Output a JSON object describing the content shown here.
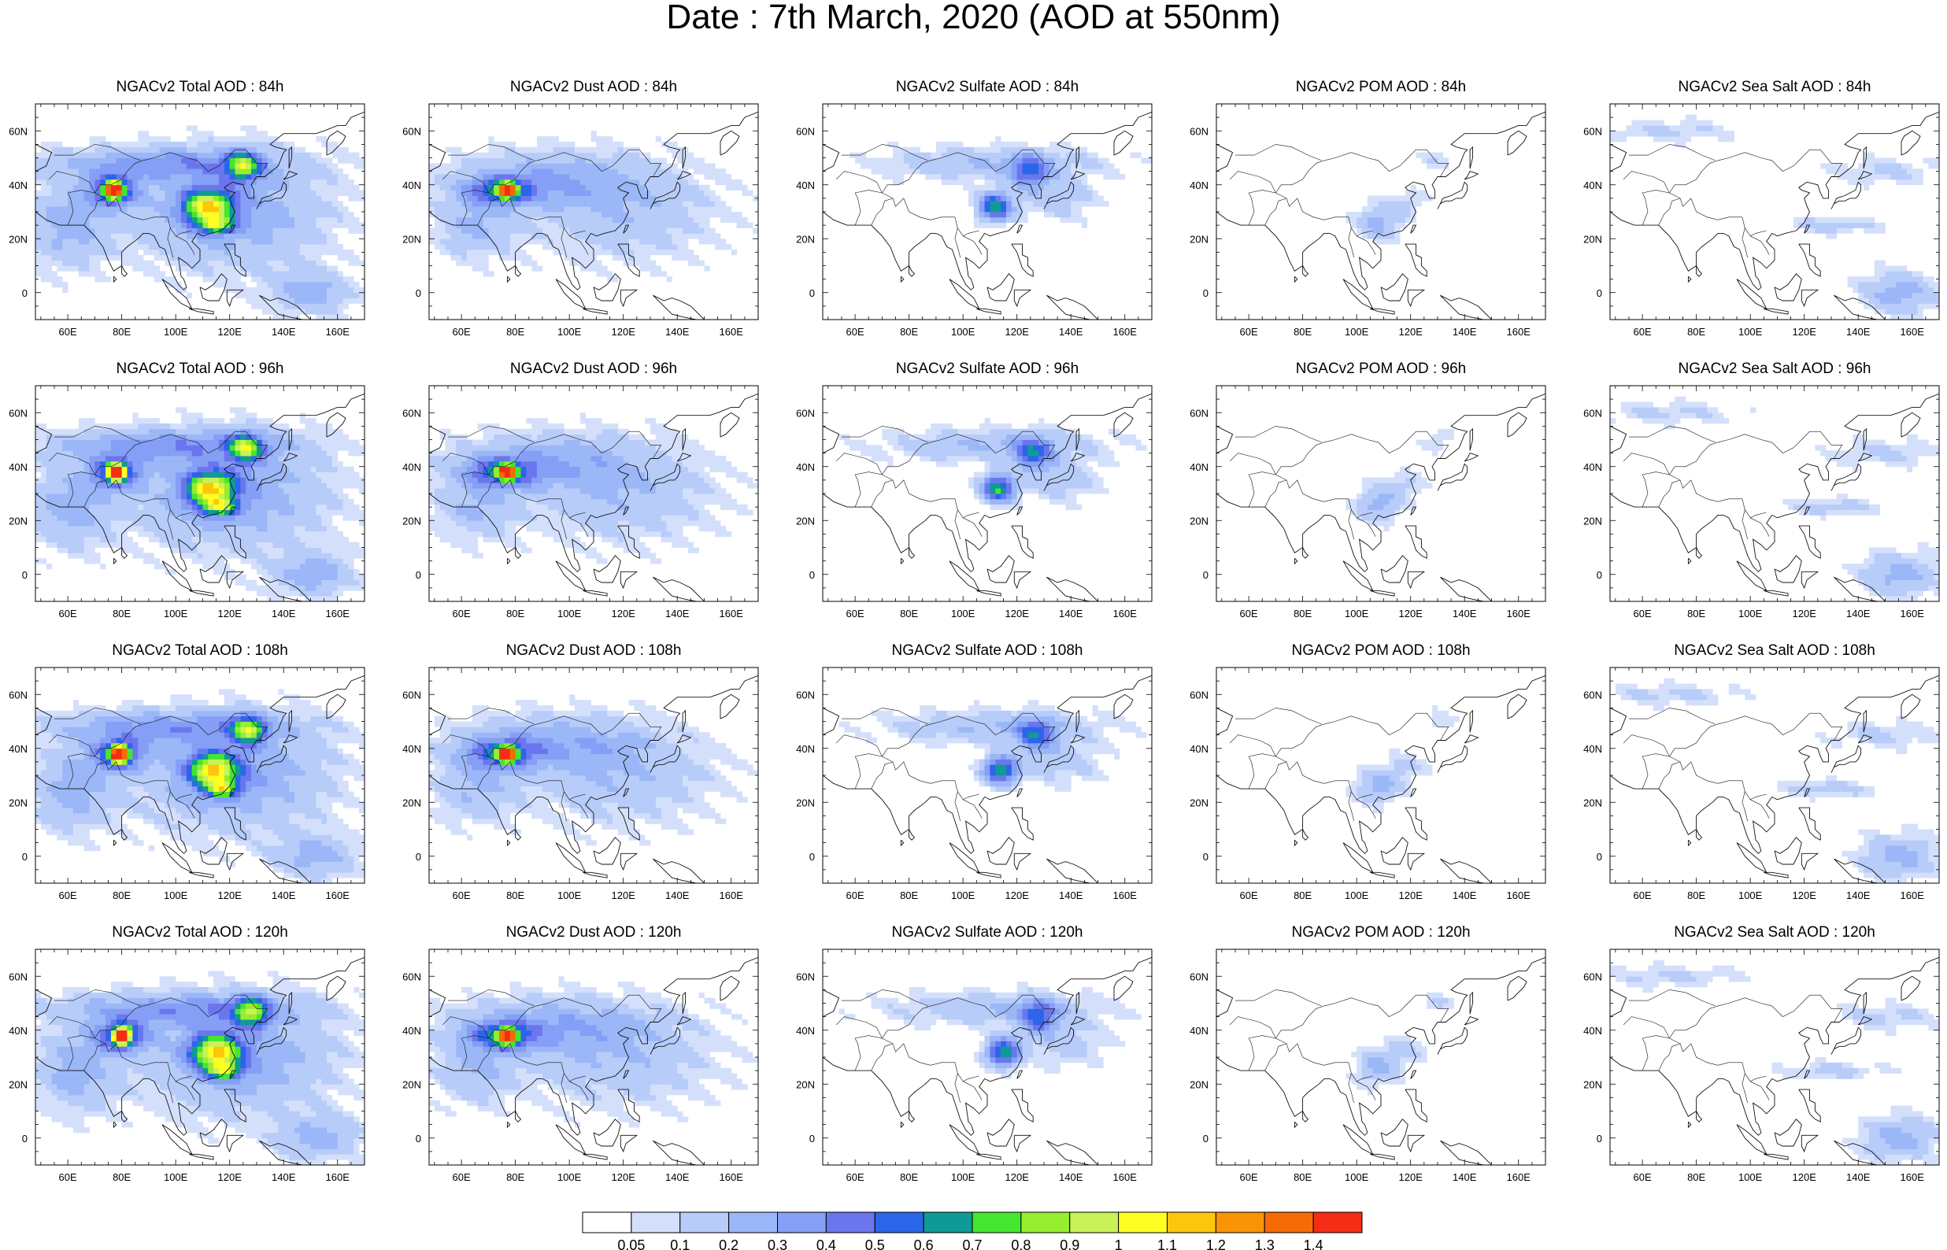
{
  "title": "Date : 7th March, 2020 (AOD at 550nm)",
  "colors": {
    "levels": [
      "#ffffff",
      "#d4e0fb",
      "#b7ccf9",
      "#9bb7f7",
      "#849ff5",
      "#6b76ee",
      "#2b66ea",
      "#109a95",
      "#44e62f",
      "#97ed2f",
      "#c8f257",
      "#fefe22",
      "#fcc60c",
      "#f99407",
      "#f66b06",
      "#f52d14"
    ]
  },
  "chart_data": {
    "type": "heatmap",
    "variable": "AOD at 550nm",
    "date": "7th March, 2020",
    "layout": {
      "rows": [
        "84h",
        "96h",
        "108h",
        "120h"
      ],
      "columns": [
        "Total",
        "Dust",
        "Sulfate",
        "POM",
        "Sea Salt"
      ]
    },
    "axes": {
      "x": {
        "ticks": [
          60,
          80,
          100,
          120,
          140,
          160
        ],
        "tick_labels": [
          "60E",
          "80E",
          "100E",
          "120E",
          "140E",
          "160E"
        ],
        "range": [
          48,
          170
        ]
      },
      "y": {
        "ticks": [
          0,
          20,
          40,
          60
        ],
        "tick_labels": [
          "0",
          "20N",
          "40N",
          "60N"
        ],
        "range": [
          -10,
          70
        ]
      }
    },
    "colorbar": {
      "labels": [
        "0.05",
        "0.1",
        "0.2",
        "0.3",
        "0.4",
        "0.5",
        "0.6",
        "0.7",
        "0.8",
        "0.9",
        "1",
        "1.1",
        "1.2",
        "1.3",
        "1.4"
      ],
      "boundaries": [
        0.05,
        0.1,
        0.2,
        0.3,
        0.4,
        0.5,
        0.6,
        0.7,
        0.8,
        0.9,
        1,
        1.1,
        1.2,
        1.3,
        1.4
      ],
      "placement": "bottom"
    },
    "panels": [
      {
        "title": "NGACv2 Total AOD : 84h",
        "row": 0,
        "col": 0,
        "species": "total",
        "lead": 84
      },
      {
        "title": "NGACv2 Dust AOD : 84h",
        "row": 0,
        "col": 1,
        "species": "dust",
        "lead": 84
      },
      {
        "title": "NGACv2 Sulfate AOD : 84h",
        "row": 0,
        "col": 2,
        "species": "sulfate",
        "lead": 84
      },
      {
        "title": "NGACv2 POM AOD : 84h",
        "row": 0,
        "col": 3,
        "species": "pom",
        "lead": 84
      },
      {
        "title": "NGACv2 Sea Salt AOD : 84h",
        "row": 0,
        "col": 4,
        "species": "seasalt",
        "lead": 84
      },
      {
        "title": "NGACv2 Total AOD : 96h",
        "row": 1,
        "col": 0,
        "species": "total",
        "lead": 96
      },
      {
        "title": "NGACv2 Dust AOD : 96h",
        "row": 1,
        "col": 1,
        "species": "dust",
        "lead": 96
      },
      {
        "title": "NGACv2 Sulfate AOD : 96h",
        "row": 1,
        "col": 2,
        "species": "sulfate",
        "lead": 96
      },
      {
        "title": "NGACv2 POM AOD : 96h",
        "row": 1,
        "col": 3,
        "species": "pom",
        "lead": 96
      },
      {
        "title": "NGACv2 Sea Salt AOD : 96h",
        "row": 1,
        "col": 4,
        "species": "seasalt",
        "lead": 96
      },
      {
        "title": "NGACv2 Total AOD : 108h",
        "row": 2,
        "col": 0,
        "species": "total",
        "lead": 108
      },
      {
        "title": "NGACv2 Dust AOD : 108h",
        "row": 2,
        "col": 1,
        "species": "dust",
        "lead": 108
      },
      {
        "title": "NGACv2 Sulfate AOD : 108h",
        "row": 2,
        "col": 2,
        "species": "sulfate",
        "lead": 108
      },
      {
        "title": "NGACv2 POM AOD : 108h",
        "row": 2,
        "col": 3,
        "species": "pom",
        "lead": 108
      },
      {
        "title": "NGACv2 Sea Salt AOD : 108h",
        "row": 2,
        "col": 4,
        "species": "seasalt",
        "lead": 108
      },
      {
        "title": "NGACv2 Total AOD : 120h",
        "row": 3,
        "col": 0,
        "species": "total",
        "lead": 120
      },
      {
        "title": "NGACv2 Dust AOD : 120h",
        "row": 3,
        "col": 1,
        "species": "dust",
        "lead": 120
      },
      {
        "title": "NGACv2 Sulfate AOD : 120h",
        "row": 3,
        "col": 2,
        "species": "sulfate",
        "lead": 120
      },
      {
        "title": "NGACv2 POM AOD : 120h",
        "row": 3,
        "col": 3,
        "species": "pom",
        "lead": 120
      },
      {
        "title": "NGACv2 Sea Salt  AOD : 120h",
        "row": 3,
        "col": 4,
        "species": "seasalt",
        "lead": 120
      }
    ],
    "features": {
      "total": [
        {
          "lon": 77,
          "lat": 38,
          "amp": 1.4,
          "rlon": 3,
          "rlat": 3
        },
        {
          "lon": 77,
          "lat": 38,
          "amp": 0.5,
          "rlon": 10,
          "rlat": 6
        },
        {
          "lon": 112,
          "lat": 32,
          "amp": 0.9,
          "rlon": 9,
          "rlat": 6
        },
        {
          "lon": 125,
          "lat": 47,
          "amp": 0.7,
          "rlon": 6,
          "rlat": 5
        },
        {
          "lon": 115,
          "lat": 25,
          "amp": 0.6,
          "rlon": 6,
          "rlat": 3
        },
        {
          "lon": 95,
          "lat": 48,
          "amp": 0.3,
          "rlon": 45,
          "rlat": 6
        },
        {
          "lon": 120,
          "lat": 30,
          "amp": 0.3,
          "rlon": 35,
          "rlat": 20
        },
        {
          "lon": 60,
          "lat": 25,
          "amp": 0.25,
          "rlon": 15,
          "rlat": 15
        },
        {
          "lon": 150,
          "lat": 0,
          "amp": 0.25,
          "rlon": 15,
          "rlat": 8
        }
      ],
      "dust": [
        {
          "lon": 77,
          "lat": 38,
          "amp": 1.3,
          "rlon": 3,
          "rlat": 2.5
        },
        {
          "lon": 75,
          "lat": 38,
          "amp": 0.45,
          "rlon": 12,
          "rlat": 5
        },
        {
          "lon": 90,
          "lat": 42,
          "amp": 0.25,
          "rlon": 35,
          "rlat": 10
        },
        {
          "lon": 120,
          "lat": 30,
          "amp": 0.18,
          "rlon": 35,
          "rlat": 18
        },
        {
          "lon": 65,
          "lat": 25,
          "amp": 0.2,
          "rlon": 15,
          "rlat": 12
        }
      ],
      "sulfate": [
        {
          "lon": 112,
          "lat": 32,
          "amp": 0.7,
          "rlon": 6,
          "rlat": 5
        },
        {
          "lon": 125,
          "lat": 45,
          "amp": 0.45,
          "rlon": 7,
          "rlat": 6
        },
        {
          "lon": 110,
          "lat": 48,
          "amp": 0.2,
          "rlon": 40,
          "rlat": 6
        },
        {
          "lon": 135,
          "lat": 35,
          "amp": 0.15,
          "rlon": 15,
          "rlat": 8
        }
      ],
      "pom": [
        {
          "lon": 108,
          "lat": 26,
          "amp": 0.25,
          "rlon": 8,
          "rlat": 6
        },
        {
          "lon": 118,
          "lat": 33,
          "amp": 0.12,
          "rlon": 8,
          "rlat": 5
        },
        {
          "lon": 130,
          "lat": 50,
          "amp": 0.1,
          "rlon": 6,
          "rlat": 4
        }
      ],
      "seasalt": [
        {
          "lon": 155,
          "lat": 0,
          "amp": 0.25,
          "rlon": 14,
          "rlat": 8
        },
        {
          "lon": 130,
          "lat": 25,
          "amp": 0.15,
          "rlon": 18,
          "rlat": 3
        },
        {
          "lon": 70,
          "lat": 60,
          "amp": 0.12,
          "rlon": 25,
          "rlat": 4
        },
        {
          "lon": 150,
          "lat": 45,
          "amp": 0.12,
          "rlon": 20,
          "rlat": 5
        }
      ]
    }
  }
}
